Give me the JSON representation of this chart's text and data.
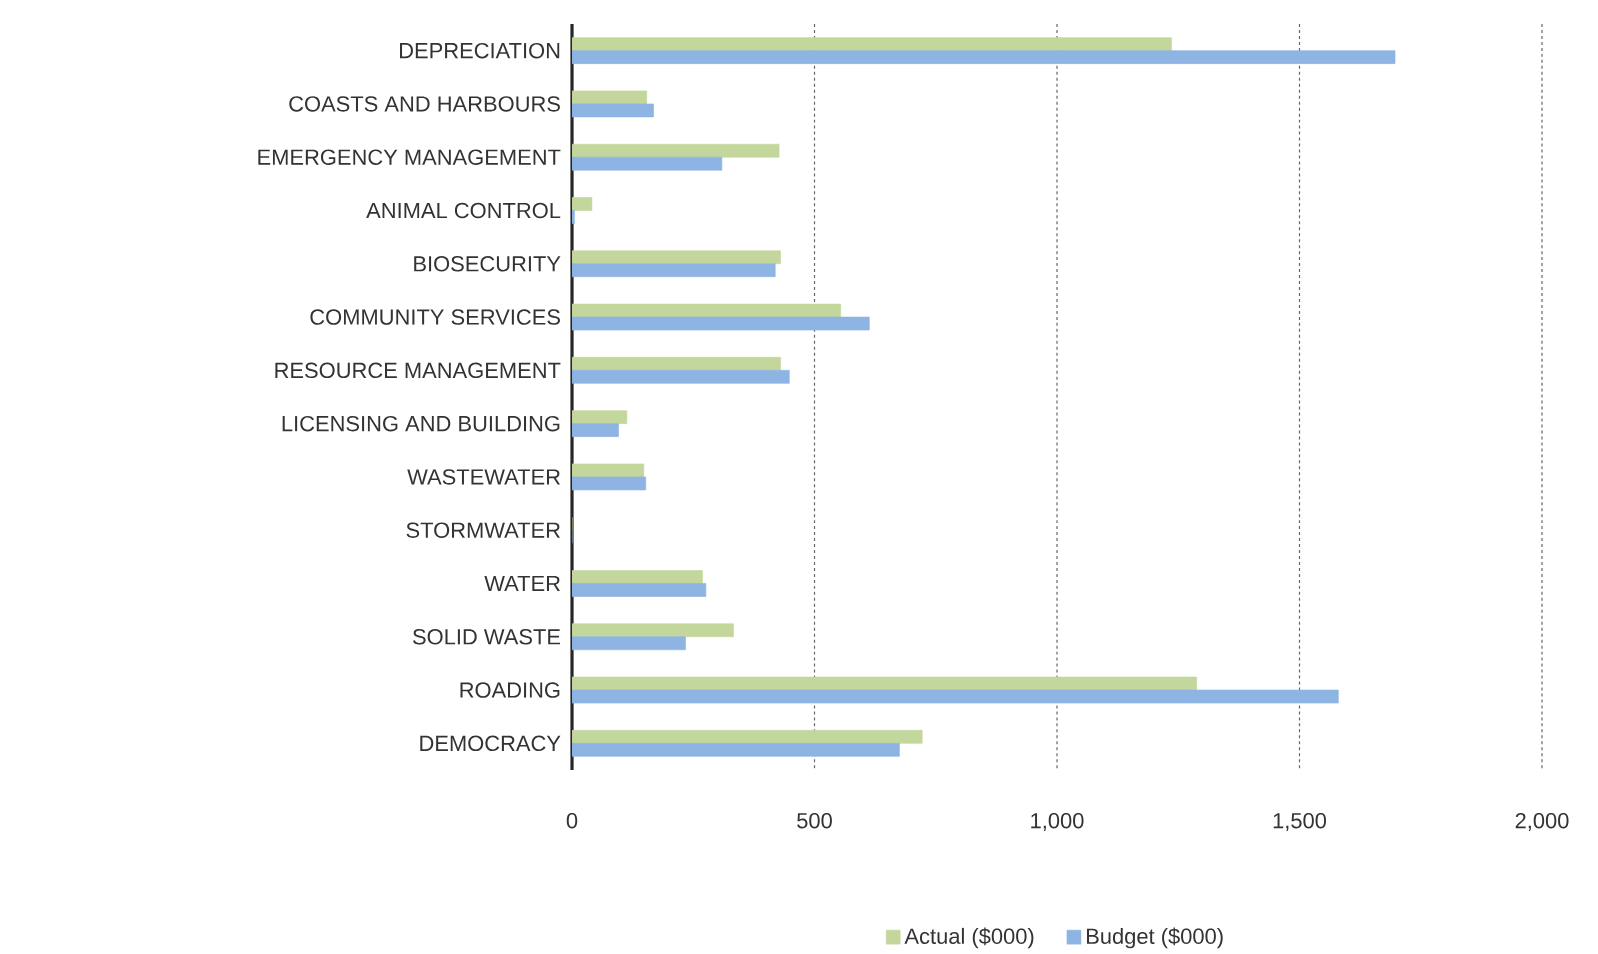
{
  "chart_data": {
    "type": "bar",
    "orientation": "horizontal",
    "categories": [
      "DEPRECIATION",
      "COASTS AND HARBOURS",
      "EMERGENCY MANAGEMENT",
      "ANIMAL CONTROL",
      "BIOSECURITY",
      "COMMUNITY SERVICES",
      "RESOURCE MANAGEMENT",
      "LICENSING AND BUILDING",
      "WASTEWATER",
      "STORMWATER",
      "WATER",
      "SOLID WASTE",
      "ROADING",
      "DEMOCRACY"
    ],
    "series": [
      {
        "name": "Actual ($000)",
        "color": "#c3d69b",
        "values": [
          1236,
          154,
          427,
          41,
          430,
          554,
          430,
          113,
          148,
          0,
          269,
          333,
          1288,
          722
        ]
      },
      {
        "name": "Budget ($000)",
        "color": "#8db4e2",
        "values": [
          1697,
          168,
          309,
          5,
          419,
          613,
          448,
          96,
          152,
          0,
          276,
          234,
          1580,
          675
        ]
      }
    ],
    "xlim": [
      0,
      2000
    ],
    "xticks": [
      0,
      500,
      {
        "value": 1000,
        "label": "1,000"
      },
      {
        "value": 1500,
        "label": "1,500"
      },
      {
        "value": 2000,
        "label": "2,000"
      }
    ],
    "grid": "x",
    "legend": "bottom"
  }
}
